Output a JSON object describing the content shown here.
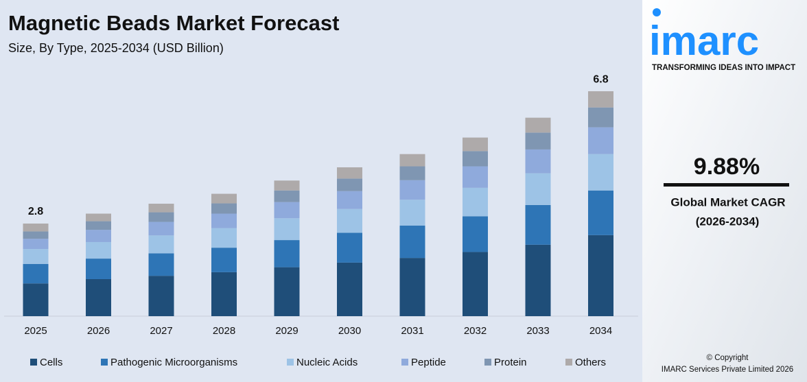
{
  "chart_data": {
    "type": "stacked_bar",
    "title": "Magnetic Beads Market Forecast",
    "subtitle": "Size, By Type, 2025-2034 (USD Billion)",
    "categories": [
      "2025",
      "2026",
      "2027",
      "2028",
      "2029",
      "2030",
      "2031",
      "2032",
      "2033",
      "2034"
    ],
    "series": [
      {
        "name": "Cells",
        "color": "#1f4e79",
        "values": [
          0.99,
          1.12,
          1.22,
          1.33,
          1.48,
          1.62,
          1.76,
          1.94,
          2.16,
          2.45
        ]
      },
      {
        "name": "Pathogenic Microorganisms",
        "color": "#2e75b6",
        "values": [
          0.59,
          0.62,
          0.68,
          0.74,
          0.82,
          0.9,
          0.98,
          1.08,
          1.2,
          1.35
        ]
      },
      {
        "name": "Nucleic Acids",
        "color": "#9dc3e6",
        "values": [
          0.45,
          0.5,
          0.54,
          0.59,
          0.66,
          0.72,
          0.78,
          0.86,
          0.96,
          1.1
        ]
      },
      {
        "name": "Peptide",
        "color": "#8faadc",
        "values": [
          0.31,
          0.37,
          0.41,
          0.44,
          0.49,
          0.54,
          0.59,
          0.65,
          0.72,
          0.81
        ]
      },
      {
        "name": "Protein",
        "color": "#7f96b2",
        "values": [
          0.22,
          0.26,
          0.29,
          0.31,
          0.35,
          0.38,
          0.42,
          0.46,
          0.51,
          0.6
        ]
      },
      {
        "name": "Others",
        "color": "#aeaaaa",
        "values": [
          0.24,
          0.23,
          0.26,
          0.29,
          0.3,
          0.34,
          0.37,
          0.41,
          0.45,
          0.49
        ]
      }
    ],
    "totals": [
      2.8,
      null,
      null,
      null,
      null,
      null,
      null,
      null,
      null,
      6.8
    ],
    "ylim": [
      0,
      7
    ]
  },
  "sidebar": {
    "logo": "imarc",
    "tagline": "TRANSFORMING IDEAS INTO IMPACT",
    "cagr": "9.88%",
    "cagr_label": "Global Market CAGR",
    "cagr_period": "(2026-2034)",
    "copyright": "© Copyright",
    "company": "IMARC Services Private Limited 2026"
  }
}
